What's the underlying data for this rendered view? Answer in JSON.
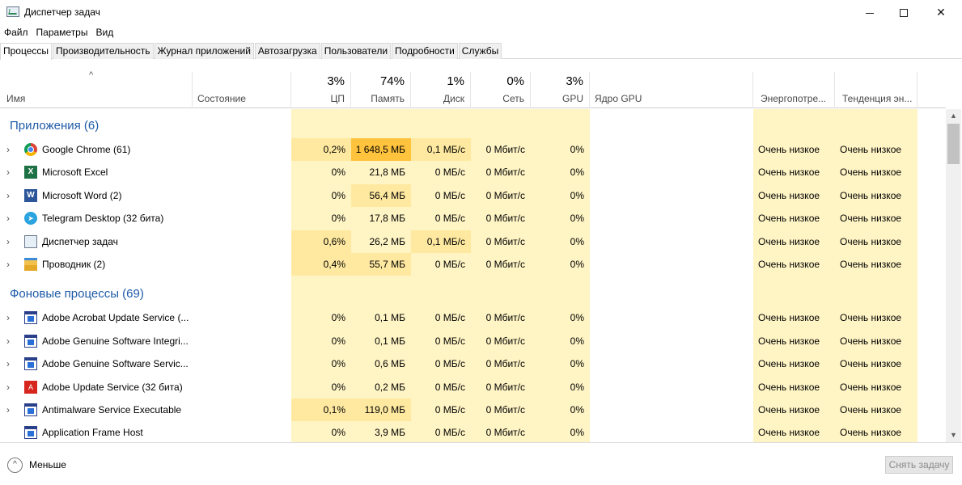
{
  "window": {
    "title": "Диспетчер задач"
  },
  "menu": [
    "Файл",
    "Параметры",
    "Вид"
  ],
  "tabs": [
    "Процессы",
    "Производительность",
    "Журнал приложений",
    "Автозагрузка",
    "Пользователи",
    "Подробности",
    "Службы"
  ],
  "header": {
    "name": "Имя",
    "status": "Состояние",
    "cpu": {
      "pct": "3%",
      "label": "ЦП"
    },
    "memory": {
      "pct": "74%",
      "label": "Память"
    },
    "disk": {
      "pct": "1%",
      "label": "Диск"
    },
    "network": {
      "pct": "0%",
      "label": "Сеть"
    },
    "gpu": {
      "pct": "3%",
      "label": "GPU"
    },
    "gpu_engine": "Ядро GPU",
    "power": "Энергопотре...",
    "power_trend": "Тенденция эн..."
  },
  "groups": [
    {
      "title": "Приложения (6)"
    },
    {
      "title": "Фоновые процессы (69)"
    }
  ],
  "apps": [
    {
      "name": "Google Chrome (61)",
      "icon": "chrome-icon",
      "cpu": "0,2%",
      "mem": "1 648,5 МБ",
      "disk": "0,1 МБ/с",
      "net": "0 Мбит/с",
      "gpu": "0%",
      "power": "Очень низкое",
      "trend": "Очень низкое"
    },
    {
      "name": "Microsoft Excel",
      "icon": "excel-icon",
      "cpu": "0%",
      "mem": "21,8 МБ",
      "disk": "0 МБ/с",
      "net": "0 Мбит/с",
      "gpu": "0%",
      "power": "Очень низкое",
      "trend": "Очень низкое"
    },
    {
      "name": "Microsoft Word (2)",
      "icon": "word-icon",
      "cpu": "0%",
      "mem": "56,4 МБ",
      "disk": "0 МБ/с",
      "net": "0 Мбит/с",
      "gpu": "0%",
      "power": "Очень низкое",
      "trend": "Очень низкое"
    },
    {
      "name": "Telegram Desktop (32 бита)",
      "icon": "telegram-icon",
      "cpu": "0%",
      "mem": "17,8 МБ",
      "disk": "0 МБ/с",
      "net": "0 Мбит/с",
      "gpu": "0%",
      "power": "Очень низкое",
      "trend": "Очень низкое"
    },
    {
      "name": "Диспетчер задач",
      "icon": "task-manager-icon",
      "cpu": "0,6%",
      "mem": "26,2 МБ",
      "disk": "0,1 МБ/с",
      "net": "0 Мбит/с",
      "gpu": "0%",
      "power": "Очень низкое",
      "trend": "Очень низкое"
    },
    {
      "name": "Проводник (2)",
      "icon": "explorer-icon",
      "cpu": "0,4%",
      "mem": "55,7 МБ",
      "disk": "0 МБ/с",
      "net": "0 Мбит/с",
      "gpu": "0%",
      "power": "Очень низкое",
      "trend": "Очень низкое"
    }
  ],
  "background": [
    {
      "name": "Adobe Acrobat Update Service (...",
      "icon": "window-icon",
      "cpu": "0%",
      "mem": "0,1 МБ",
      "disk": "0 МБ/с",
      "net": "0 Мбит/с",
      "gpu": "0%",
      "power": "Очень низкое",
      "trend": "Очень низкое"
    },
    {
      "name": "Adobe Genuine Software Integri...",
      "icon": "window-icon",
      "cpu": "0%",
      "mem": "0,1 МБ",
      "disk": "0 МБ/с",
      "net": "0 Мбит/с",
      "gpu": "0%",
      "power": "Очень низкое",
      "trend": "Очень низкое"
    },
    {
      "name": "Adobe Genuine Software Servic...",
      "icon": "window-icon",
      "cpu": "0%",
      "mem": "0,6 МБ",
      "disk": "0 МБ/с",
      "net": "0 Мбит/с",
      "gpu": "0%",
      "power": "Очень низкое",
      "trend": "Очень низкое"
    },
    {
      "name": "Adobe Update Service (32 бита)",
      "icon": "adobe-icon",
      "cpu": "0%",
      "mem": "0,2 МБ",
      "disk": "0 МБ/с",
      "net": "0 Мбит/с",
      "gpu": "0%",
      "power": "Очень низкое",
      "trend": "Очень низкое"
    },
    {
      "name": "Antimalware Service Executable",
      "icon": "window-icon",
      "cpu": "0,1%",
      "mem": "119,0 МБ",
      "disk": "0 МБ/с",
      "net": "0 Мбит/с",
      "gpu": "0%",
      "power": "Очень низкое",
      "trend": "Очень низкое"
    },
    {
      "name": "Application Frame Host",
      "icon": "window-icon",
      "cpu": "0%",
      "mem": "3,9 МБ",
      "disk": "0 МБ/с",
      "net": "0 Мбит/с",
      "gpu": "0%",
      "power": "Очень низкое",
      "trend": "Очень низкое"
    }
  ],
  "footer": {
    "less_label": "Меньше",
    "end_task_label": "Снять задачу"
  },
  "colors": {
    "heat_light": "#fff4c4",
    "heat_mid": "#ffe9a0",
    "heat_high": "#ffc33d",
    "group_title": "#1e5aa8"
  }
}
